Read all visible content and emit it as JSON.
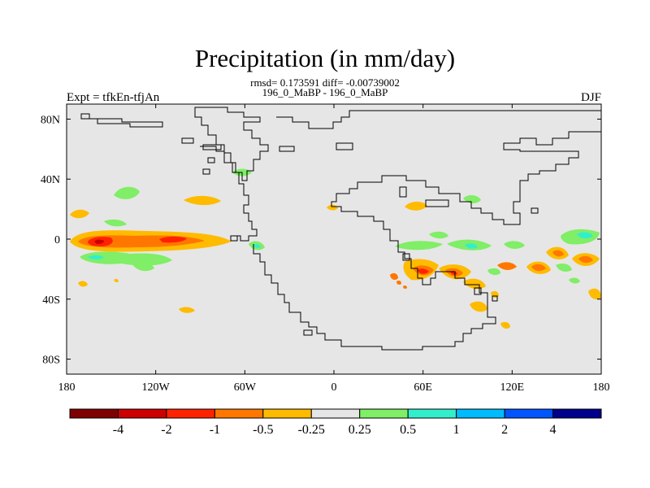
{
  "title": "Precipitation (in mm/day)",
  "subtitle_stats": "rmsd= 0.173591 diff= -0.00739002",
  "subtitle_runs": "196_0_MaBP - 196_0_MaBP",
  "left_label": "Expt = tfkEn-tfjAn",
  "right_label": "DJF",
  "map": {
    "projection": "cylindrical-equidistant",
    "lon_range": [
      -180,
      180
    ],
    "lat_range": [
      -90,
      90
    ],
    "background_color": "#e6e6e6",
    "coastline_color": "#000000",
    "x_ticks": [
      {
        "value": -180,
        "label": "180"
      },
      {
        "value": -120,
        "label": "120W"
      },
      {
        "value": -60,
        "label": "60W"
      },
      {
        "value": 0,
        "label": "0"
      },
      {
        "value": 60,
        "label": "60E"
      },
      {
        "value": 120,
        "label": "120E"
      },
      {
        "value": 180,
        "label": "180"
      }
    ],
    "y_ticks": [
      {
        "value": 80,
        "label": "80N"
      },
      {
        "value": 40,
        "label": "40N"
      },
      {
        "value": 0,
        "label": "0"
      },
      {
        "value": -40,
        "label": "40S"
      },
      {
        "value": -80,
        "label": "80S"
      }
    ]
  },
  "colorbar": {
    "colors": [
      "#7f0000",
      "#cc0000",
      "#ff2200",
      "#ff7700",
      "#ffbb00",
      "#e6e6e6",
      "#80ee66",
      "#33eecc",
      "#00bbff",
      "#0055ff",
      "#00008c"
    ],
    "labels": [
      "-4",
      "-2",
      "-1",
      "-0.5",
      "-0.25",
      "0.25",
      "0.5",
      "1",
      "2",
      "4"
    ]
  },
  "chart_data": {
    "type": "heatmap",
    "title": "Precipitation (in mm/day)",
    "subtitle": "rmsd= 0.173591 diff= -0.00739002",
    "field": "precipitation difference",
    "season": "DJF",
    "x_range": [
      -180,
      180
    ],
    "y_range": [
      -90,
      90
    ],
    "levels": [
      -4,
      -2,
      -1,
      -0.5,
      -0.25,
      0.25,
      0.5,
      1,
      2,
      4
    ],
    "features": [
      {
        "lon": -155,
        "lat": 0,
        "value": -2
      },
      {
        "lon": -110,
        "lat": 0,
        "value": -1
      },
      {
        "lon": -140,
        "lat": -10,
        "value": 1
      },
      {
        "lon": -35,
        "lat": 40,
        "value": 0.5
      },
      {
        "lon": -50,
        "lat": -5,
        "value": 1
      },
      {
        "lon": 58,
        "lat": -25,
        "value": -2
      },
      {
        "lon": 50,
        "lat": 20,
        "value": -0.5
      },
      {
        "lon": 150,
        "lat": -10,
        "value": -0.5
      },
      {
        "lon": 170,
        "lat": 5,
        "value": 0.5
      },
      {
        "lon": 90,
        "lat": -35,
        "value": -0.5
      }
    ]
  }
}
